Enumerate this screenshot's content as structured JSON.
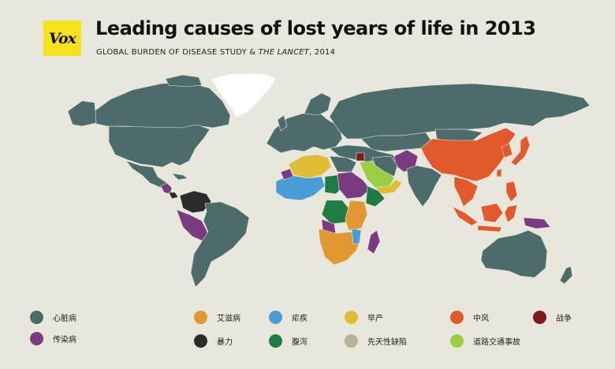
{
  "logo": {
    "text": "Vox"
  },
  "title": "Leading causes of lost years of life in 2013",
  "subtitle": {
    "main": "GLOBAL BURDEN OF DISEASE STUDY & ",
    "italic": "THE LANCET",
    "tail": ", 2014"
  },
  "colors": {
    "background": "#e9e7dc",
    "heart": "#4e6b6b",
    "infectious": "#7a3b82",
    "aids": "#e29830",
    "violence": "#2b2b2b",
    "malaria": "#4a9cd8",
    "diarrhea": "#1f7a44",
    "preterm": "#e0bd37",
    "congenital": "#b7b39a",
    "stroke": "#e25a2c",
    "road": "#9bcd45",
    "war": "#7c1a1e",
    "greenland": "#ffffff"
  },
  "legend": [
    {
      "key": "heart",
      "label": "心脏病",
      "color": "#4e6b6b"
    },
    {
      "key": "aids",
      "label": "艾滋病",
      "color": "#e29830"
    },
    {
      "key": "malaria",
      "label": "疟疾",
      "color": "#4a9cd8"
    },
    {
      "key": "preterm",
      "label": "早产",
      "color": "#e0bd37"
    },
    {
      "key": "stroke",
      "label": "中风",
      "color": "#e25a2c"
    },
    {
      "key": "war",
      "label": "战争",
      "color": "#7c1a1e"
    },
    {
      "key": "infectious",
      "label": "传染病",
      "color": "#7a3b82"
    },
    {
      "key": "violence",
      "label": "暴力",
      "color": "#2b2b2b"
    },
    {
      "key": "diarrhea",
      "label": "腹泻",
      "color": "#1f7a44"
    },
    {
      "key": "congenital",
      "label": "先天性缺陷",
      "color": "#b7b39a"
    },
    {
      "key": "road",
      "label": "道路交通事故",
      "color": "#9bcd45"
    }
  ]
}
